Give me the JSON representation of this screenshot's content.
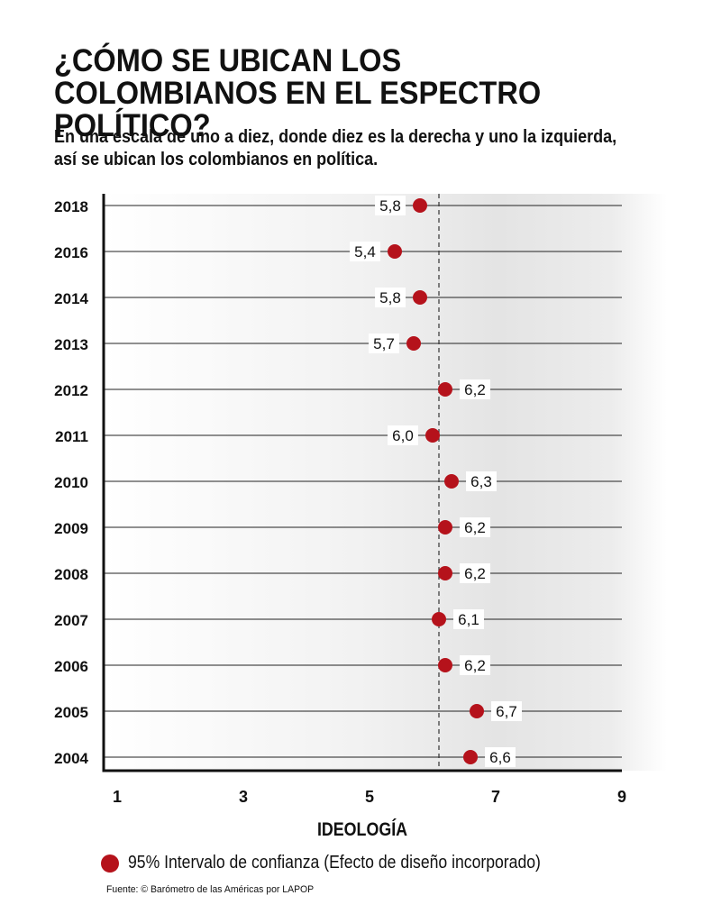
{
  "title": "¿CÓMO SE UBICAN LOS COLOMBIANOS EN EL ESPECTRO POLÍTICO?",
  "subtitle": "En una escala de uno a diez, donde diez es la derecha y uno la izquierda, así se ubican los colombianos en política.",
  "legend_label": "95% Intervalo de confianza (Efecto de diseño incorporado)",
  "source": "Fuente: © Barómetro de las Américas por LAPOP",
  "colors": {
    "dot": "#b5121b",
    "axis": "#111111",
    "ref_line": "#333333"
  },
  "chart_data": {
    "type": "scatter",
    "title": "¿CÓMO SE UBICAN LOS COLOMBIANOS EN EL ESPECTRO POLÍTICO?",
    "xlabel": "IDEOLOGÍA",
    "ylabel": "",
    "xlim": [
      1,
      9
    ],
    "x_ticks": [
      "1",
      "3",
      "5",
      "7",
      "9"
    ],
    "reference_line_x": 6.1,
    "grid": "horizontal",
    "legend": "bottom-left",
    "categories": [
      "2018",
      "2016",
      "2014",
      "2013",
      "2012",
      "2011",
      "2010",
      "2009",
      "2008",
      "2007",
      "2006",
      "2005",
      "2004"
    ],
    "values": [
      5.8,
      5.4,
      5.8,
      5.7,
      6.2,
      6.0,
      6.3,
      6.2,
      6.2,
      6.1,
      6.2,
      6.7,
      6.6
    ],
    "value_labels": [
      "5,8",
      "5,4",
      "5,8",
      "5,7",
      "6,2",
      "6,0",
      "6,3",
      "6,2",
      "6,2",
      "6,1",
      "6,2",
      "6,7",
      "6,6"
    ]
  }
}
